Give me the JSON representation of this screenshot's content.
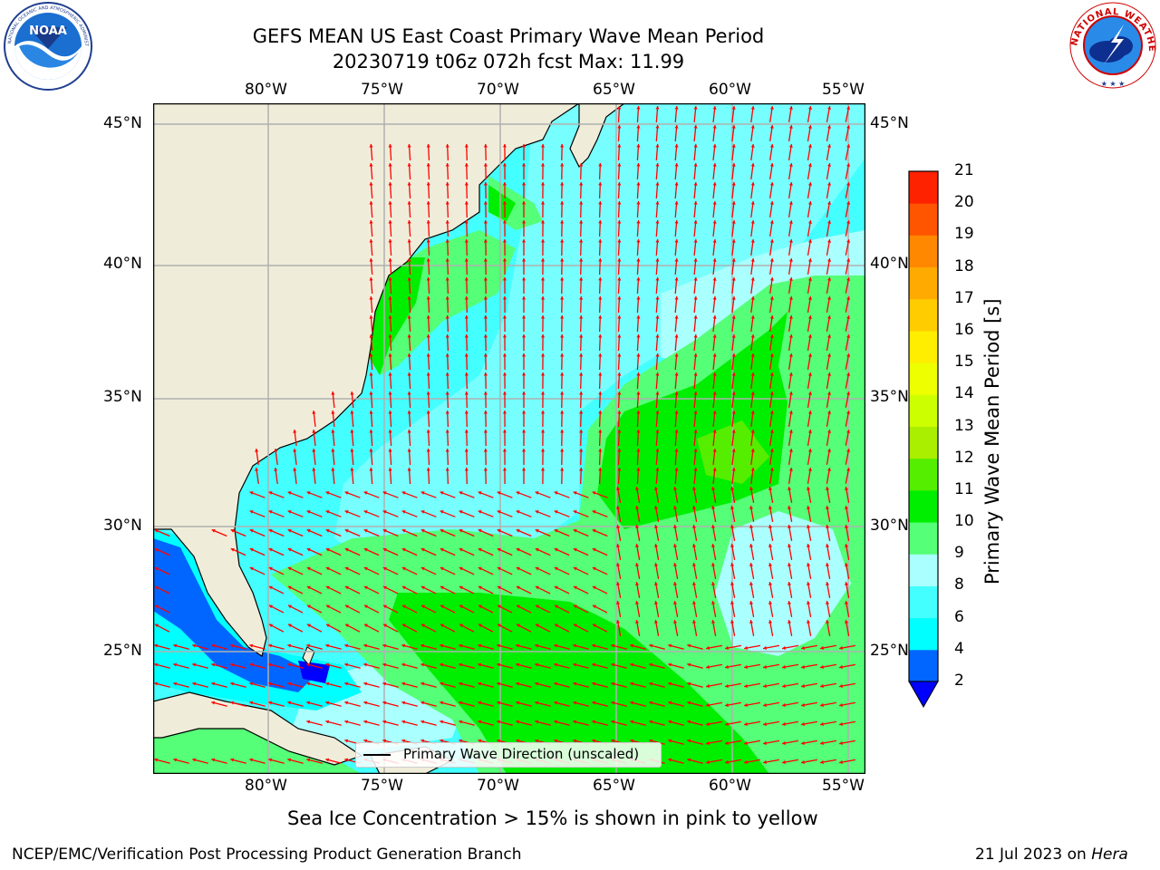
{
  "header": {
    "title": "GEFS MEAN US East Coast Primary Wave Mean Period",
    "subtitle": "20230719 t06z 072h fcst   Max: 11.99"
  },
  "logos": {
    "left": {
      "name": "NOAA",
      "ring_text": "NATIONAL OCEANIC AND ATMOSPHERIC ADMINISTRATION · U.S. DEPARTMENT OF COMMERCE"
    },
    "right": {
      "name": "NATIONAL WEATHER SERVICE"
    }
  },
  "map": {
    "lon_labels": [
      "80°W",
      "75°W",
      "70°W",
      "65°W",
      "60°W",
      "55°W"
    ],
    "lat_labels": [
      "45°N",
      "40°N",
      "35°N",
      "30°N",
      "25°N"
    ],
    "legend_label": "Primary Wave Direction (unscaled)",
    "colors": {
      "land": "#efedd9",
      "coast": "#000000",
      "grid": "#b0b0b0",
      "arrows": "#ff0000"
    }
  },
  "colorbar": {
    "label": "Primary Wave Mean Period [s]",
    "ticks": [
      "2",
      "4",
      "6",
      "8",
      "9",
      "10",
      "11",
      "12",
      "13",
      "14",
      "15",
      "16",
      "17",
      "18",
      "19",
      "20",
      "21"
    ],
    "colors": [
      "#0066ff",
      "#00ffff",
      "#44ffff",
      "#aaffff",
      "#55ff77",
      "#00ee00",
      "#55ee00",
      "#aaee00",
      "#ccff00",
      "#eeff00",
      "#ffee00",
      "#ffcc00",
      "#ffaa00",
      "#ff8800",
      "#ff5500",
      "#ff2200",
      "#ff0000"
    ],
    "extend_color": "#0000ff"
  },
  "footer": {
    "note": "Sea Ice Concentration > 15% is shown in pink to yellow",
    "credit": "NCEP/EMC/Verification Post Processing Product Generation Branch",
    "date": "21 Jul 2023 on",
    "machine": "Hera"
  }
}
